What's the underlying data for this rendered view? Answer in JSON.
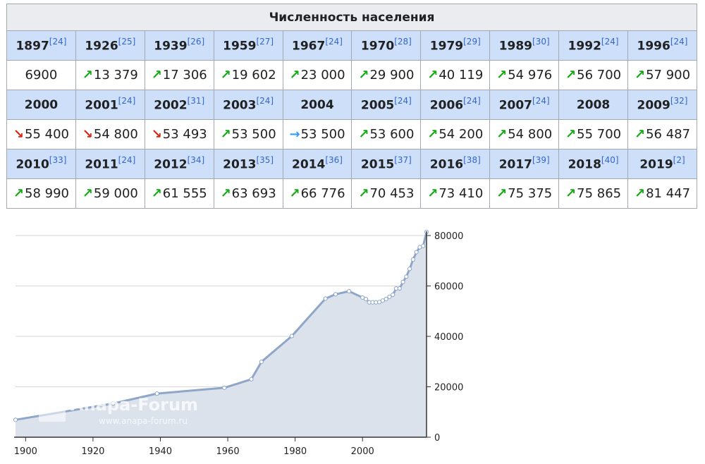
{
  "table": {
    "title": "Численность населения",
    "colors": {
      "up": "#11aa11",
      "down": "#dd2211",
      "same": "#3399ff"
    },
    "rows": [
      [
        {
          "year": "1897",
          "ref": "[24]",
          "value": "6900",
          "trend": ""
        },
        {
          "year": "1926",
          "ref": "[25]",
          "value": "13 379",
          "trend": "up"
        },
        {
          "year": "1939",
          "ref": "[26]",
          "value": "17 306",
          "trend": "up"
        },
        {
          "year": "1959",
          "ref": "[27]",
          "value": "19 602",
          "trend": "up"
        },
        {
          "year": "1967",
          "ref": "[24]",
          "value": "23 000",
          "trend": "up"
        },
        {
          "year": "1970",
          "ref": "[28]",
          "value": "29 900",
          "trend": "up"
        },
        {
          "year": "1979",
          "ref": "[29]",
          "value": "40 119",
          "trend": "up"
        },
        {
          "year": "1989",
          "ref": "[30]",
          "value": "54 976",
          "trend": "up"
        },
        {
          "year": "1992",
          "ref": "[24]",
          "value": "56 700",
          "trend": "up"
        },
        {
          "year": "1996",
          "ref": "[24]",
          "value": "57 900",
          "trend": "up"
        }
      ],
      [
        {
          "year": "2000",
          "ref": "",
          "value": "55 400",
          "trend": "down"
        },
        {
          "year": "2001",
          "ref": "[24]",
          "value": "54 800",
          "trend": "down"
        },
        {
          "year": "2002",
          "ref": "[31]",
          "value": "53 493",
          "trend": "down"
        },
        {
          "year": "2003",
          "ref": "[24]",
          "value": "53 500",
          "trend": "up"
        },
        {
          "year": "2004",
          "ref": "",
          "value": "53 500",
          "trend": "same"
        },
        {
          "year": "2005",
          "ref": "[24]",
          "value": "53 600",
          "trend": "up"
        },
        {
          "year": "2006",
          "ref": "[24]",
          "value": "54 200",
          "trend": "up"
        },
        {
          "year": "2007",
          "ref": "[24]",
          "value": "54 800",
          "trend": "up"
        },
        {
          "year": "2008",
          "ref": "",
          "value": "55 700",
          "trend": "up"
        },
        {
          "year": "2009",
          "ref": "[32]",
          "value": "56 487",
          "trend": "up"
        }
      ],
      [
        {
          "year": "2010",
          "ref": "[33]",
          "value": "58 990",
          "trend": "up"
        },
        {
          "year": "2011",
          "ref": "[24]",
          "value": "59 000",
          "trend": "up"
        },
        {
          "year": "2012",
          "ref": "[34]",
          "value": "61 555",
          "trend": "up"
        },
        {
          "year": "2013",
          "ref": "[35]",
          "value": "63 693",
          "trend": "up"
        },
        {
          "year": "2014",
          "ref": "[36]",
          "value": "66 776",
          "trend": "up"
        },
        {
          "year": "2015",
          "ref": "[37]",
          "value": "70 453",
          "trend": "up"
        },
        {
          "year": "2016",
          "ref": "[38]",
          "value": "73 410",
          "trend": "up"
        },
        {
          "year": "2017",
          "ref": "[39]",
          "value": "75 375",
          "trend": "up"
        },
        {
          "year": "2018",
          "ref": "[40]",
          "value": "75 865",
          "trend": "up"
        },
        {
          "year": "2019",
          "ref": "[2]",
          "value": "81 447",
          "trend": "up"
        }
      ]
    ]
  },
  "chart_data": {
    "type": "area",
    "title": "",
    "xlabel": "",
    "ylabel": "",
    "xlim": [
      1897,
      2019
    ],
    "ylim": [
      0,
      80000
    ],
    "x_ticks": [
      1900,
      1920,
      1940,
      1960,
      1980,
      2000
    ],
    "y_ticks": [
      0,
      20000,
      40000,
      60000,
      80000
    ],
    "grid": true,
    "colors": {
      "line": "#8fa6c8",
      "fill": "#dbe2ec",
      "point": "#ffffff",
      "grid": "#d6d6d6"
    },
    "x": [
      1897,
      1926,
      1939,
      1959,
      1967,
      1970,
      1979,
      1989,
      1992,
      1996,
      2000,
      2001,
      2002,
      2003,
      2004,
      2005,
      2006,
      2007,
      2008,
      2009,
      2010,
      2011,
      2012,
      2013,
      2014,
      2015,
      2016,
      2017,
      2018,
      2019
    ],
    "values": [
      6900,
      13379,
      17306,
      19602,
      23000,
      29900,
      40119,
      54976,
      56700,
      57900,
      55400,
      54800,
      53493,
      53500,
      53500,
      53600,
      54200,
      54800,
      55700,
      56487,
      58990,
      59000,
      61555,
      63693,
      66776,
      70453,
      73410,
      75375,
      75865,
      81447
    ]
  },
  "watermark": {
    "name": "Anapa-Forum",
    "url": "www.anapa-forum.ru"
  }
}
